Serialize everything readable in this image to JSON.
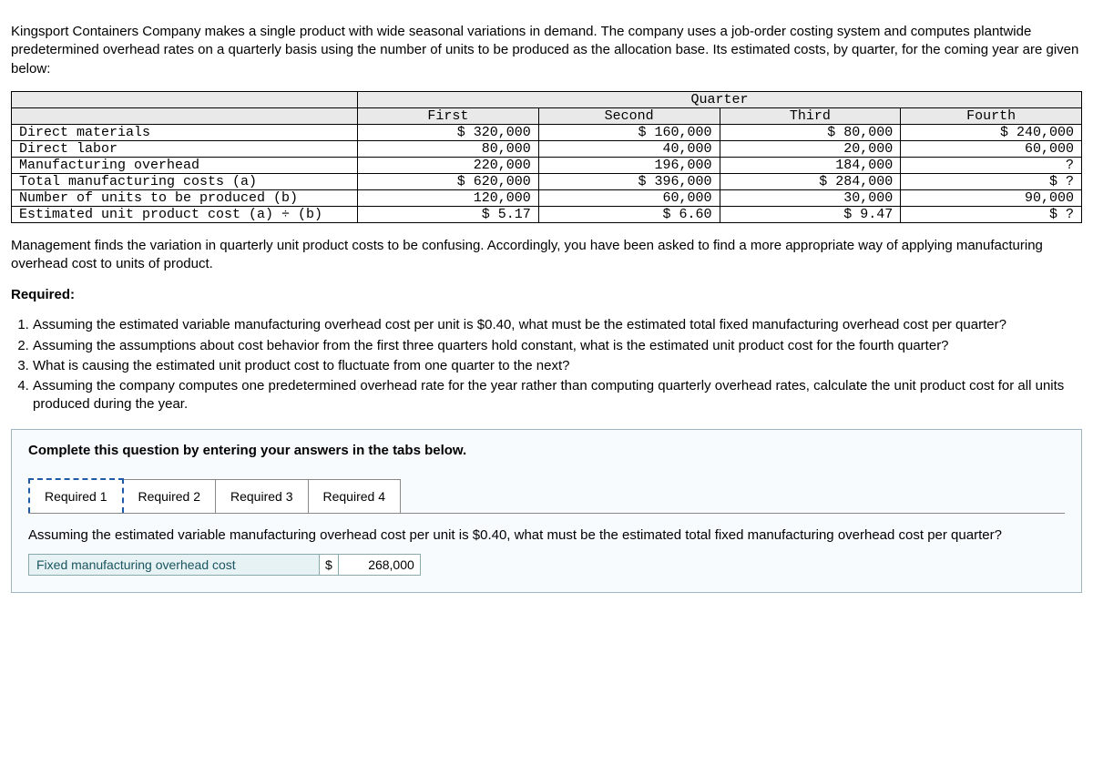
{
  "intro": "Kingsport Containers Company makes a single product with wide seasonal variations in demand. The company uses a job-order costing system and computes plantwide predetermined overhead rates on a quarterly basis using the number of units to be produced as the allocation base. Its estimated costs, by quarter, for the coming year are given below:",
  "table": {
    "quarter_header": "Quarter",
    "columns": [
      "First",
      "Second",
      "Third",
      "Fourth"
    ],
    "rows": [
      {
        "label": "Direct materials",
        "c1": "$ 320,000",
        "c2": "$ 160,000",
        "c3": "$ 80,000",
        "c4": "$ 240,000"
      },
      {
        "label": "Direct labor",
        "c1": "80,000",
        "c2": "40,000",
        "c3": "20,000",
        "c4": "60,000"
      },
      {
        "label": "Manufacturing overhead",
        "c1": "220,000",
        "c2": "196,000",
        "c3": "184,000",
        "c4": "?"
      },
      {
        "label": "Total manufacturing costs (a)",
        "c1": "$ 620,000",
        "c2": "$ 396,000",
        "c3": "$ 284,000",
        "c4": "$ ?"
      },
      {
        "label": "Number of units to be produced (b)",
        "c1": "120,000",
        "c2": "60,000",
        "c3": "30,000",
        "c4": "90,000"
      },
      {
        "label": "Estimated unit product cost (a) ÷ (b)",
        "c1": "$ 5.17",
        "c2": "$ 6.60",
        "c3": "$ 9.47",
        "c4": "$ ?"
      }
    ]
  },
  "mgmt_para": "Management finds the variation in quarterly unit product costs to be confusing. Accordingly, you have been asked to find a more appropriate way of applying manufacturing overhead cost to units of product.",
  "required_label": "Required:",
  "required_items": [
    "Assuming the estimated variable manufacturing overhead cost per unit is $0.40, what must be the estimated total fixed manufacturing overhead cost per quarter?",
    "Assuming the assumptions about cost behavior from the first three quarters hold constant, what is the estimated unit product cost for the fourth quarter?",
    "What is causing the estimated unit product cost to fluctuate from one quarter to the next?",
    "Assuming the company computes one predetermined overhead rate for the year rather than computing quarterly overhead rates, calculate the unit product cost for all units produced during the year."
  ],
  "answer_box": {
    "instruction": "Complete this question by entering your answers in the tabs below.",
    "tabs": [
      "Required 1",
      "Required 2",
      "Required 3",
      "Required 4"
    ],
    "active_tab": 0,
    "pane_text": "Assuming the estimated variable manufacturing overhead cost per unit is $0.40, what must be the estimated total fixed manufacturing overhead cost per quarter?",
    "input_label": "Fixed manufacturing overhead cost",
    "currency": "$",
    "input_value": "268,000"
  }
}
